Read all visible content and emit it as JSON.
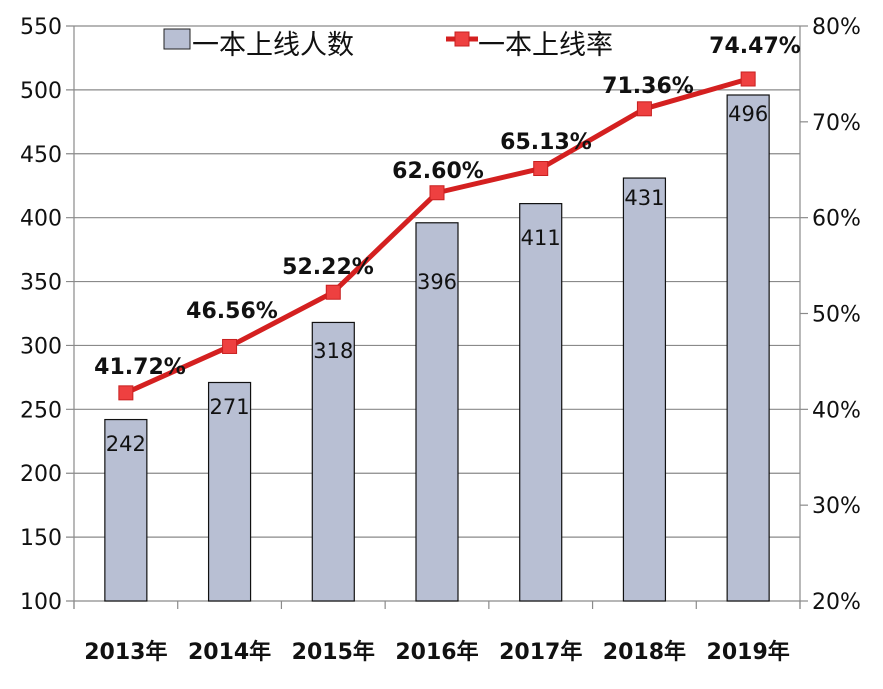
{
  "chart_data": {
    "type": "bar+line",
    "title": "",
    "categories": [
      "2013年",
      "2014年",
      "2015年",
      "2016年",
      "2017年",
      "2018年",
      "2019年"
    ],
    "series": [
      {
        "name": "一本上线人数",
        "type": "bar",
        "axis": "left",
        "values": [
          242,
          271,
          318,
          396,
          411,
          431,
          496
        ],
        "labels": [
          "242",
          "271",
          "318",
          "396",
          "411",
          "431",
          "496"
        ],
        "color": "#b8bfd3"
      },
      {
        "name": "一本上线率",
        "type": "line",
        "axis": "right",
        "values": [
          41.72,
          46.56,
          52.22,
          62.6,
          65.13,
          71.36,
          74.47
        ],
        "labels": [
          "41.72%",
          "46.56%",
          "52.22%",
          "62.60%",
          "65.13%",
          "71.36%",
          "74.47%"
        ],
        "color": "#d42020"
      }
    ],
    "y_left": {
      "min": 100,
      "max": 550,
      "step": 50,
      "ticks": [
        "100",
        "150",
        "200",
        "250",
        "300",
        "350",
        "400",
        "450",
        "500",
        "550"
      ]
    },
    "y_right": {
      "min": 20,
      "max": 80,
      "step": 10,
      "ticks": [
        "20%",
        "30%",
        "40%",
        "50%",
        "60%",
        "70%",
        "80%"
      ]
    },
    "grid": true,
    "legend_position": "top"
  },
  "legend": {
    "bar_label": "一本上线人数",
    "line_label": "一本上线率"
  }
}
